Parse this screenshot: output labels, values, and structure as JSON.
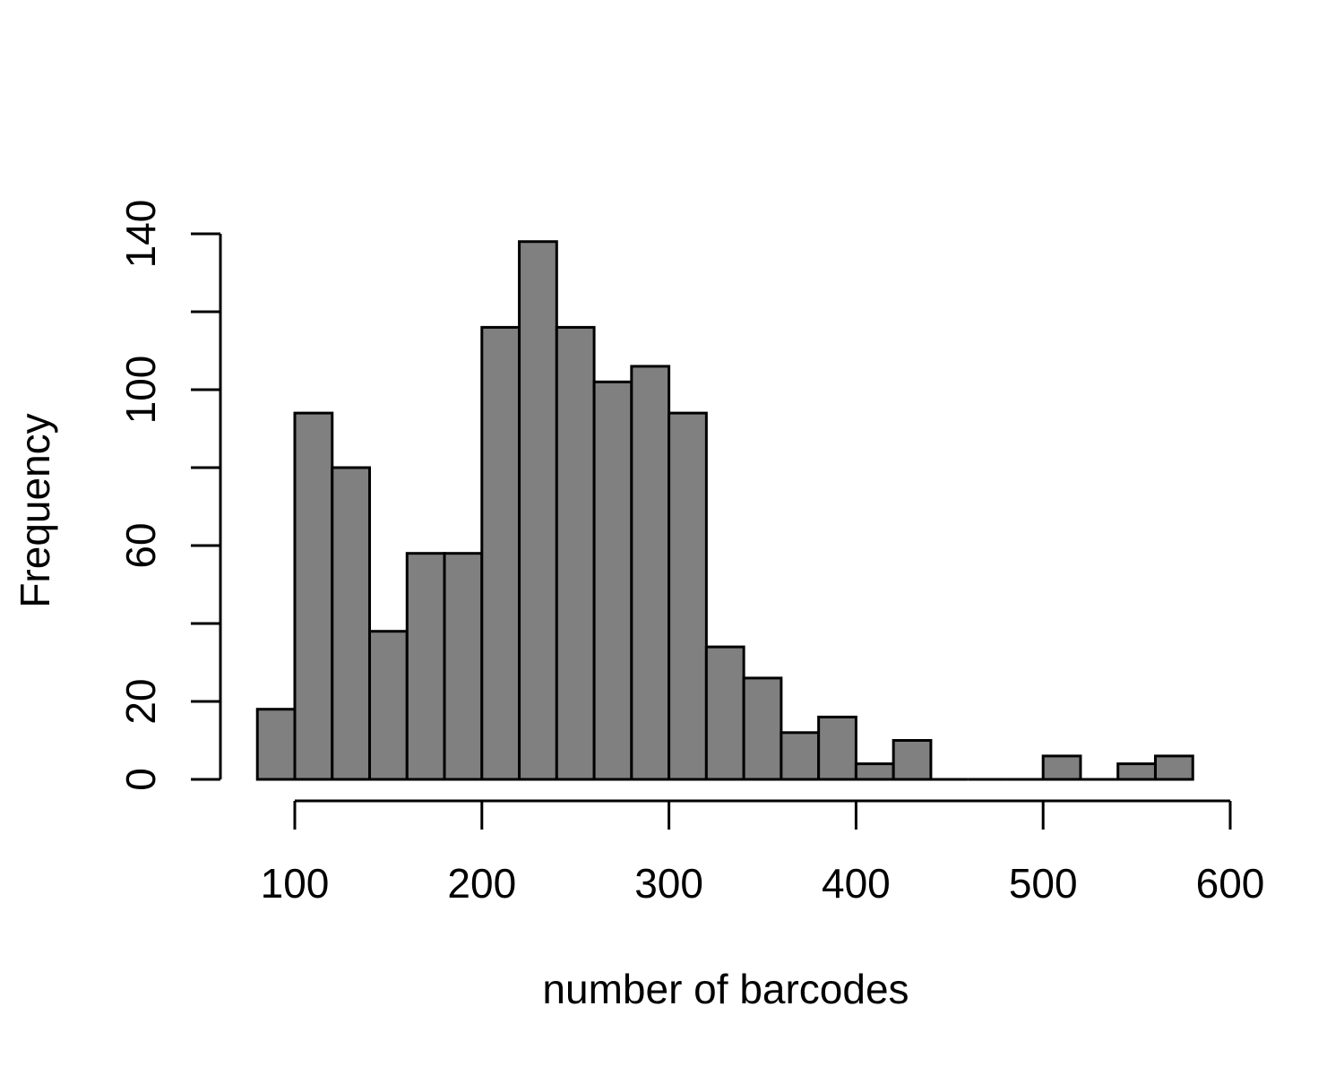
{
  "chart_data": {
    "type": "bar",
    "subtype": "histogram",
    "title": "",
    "xlabel": "number of barcodes",
    "ylabel": "Frequency",
    "bin_width": 20,
    "bins": [
      {
        "x0": 80,
        "x1": 100,
        "count": 18
      },
      {
        "x0": 100,
        "x1": 120,
        "count": 94
      },
      {
        "x0": 120,
        "x1": 140,
        "count": 80
      },
      {
        "x0": 140,
        "x1": 160,
        "count": 38
      },
      {
        "x0": 160,
        "x1": 180,
        "count": 58
      },
      {
        "x0": 180,
        "x1": 200,
        "count": 58
      },
      {
        "x0": 200,
        "x1": 220,
        "count": 116
      },
      {
        "x0": 220,
        "x1": 240,
        "count": 138
      },
      {
        "x0": 240,
        "x1": 260,
        "count": 116
      },
      {
        "x0": 260,
        "x1": 280,
        "count": 102
      },
      {
        "x0": 280,
        "x1": 300,
        "count": 106
      },
      {
        "x0": 300,
        "x1": 320,
        "count": 94
      },
      {
        "x0": 320,
        "x1": 340,
        "count": 34
      },
      {
        "x0": 340,
        "x1": 360,
        "count": 26
      },
      {
        "x0": 360,
        "x1": 380,
        "count": 12
      },
      {
        "x0": 380,
        "x1": 400,
        "count": 16
      },
      {
        "x0": 400,
        "x1": 420,
        "count": 4
      },
      {
        "x0": 420,
        "x1": 440,
        "count": 10
      },
      {
        "x0": 440,
        "x1": 460,
        "count": 0
      },
      {
        "x0": 460,
        "x1": 480,
        "count": 0
      },
      {
        "x0": 480,
        "x1": 500,
        "count": 0
      },
      {
        "x0": 500,
        "x1": 520,
        "count": 6
      },
      {
        "x0": 520,
        "x1": 540,
        "count": 0
      },
      {
        "x0": 540,
        "x1": 560,
        "count": 4
      },
      {
        "x0": 560,
        "x1": 580,
        "count": 6
      }
    ],
    "xlim": [
      100,
      600
    ],
    "ylim": [
      0,
      140
    ],
    "x_ticks": [
      100,
      200,
      300,
      400,
      500,
      600
    ],
    "y_ticks": [
      0,
      20,
      40,
      60,
      80,
      100,
      120,
      140
    ],
    "y_tick_labels": [
      "0",
      "20",
      "",
      "60",
      "",
      "100",
      "",
      "140"
    ],
    "bar_color": "#808080",
    "edge_color": "#000000",
    "grid": false,
    "legend": "none"
  }
}
